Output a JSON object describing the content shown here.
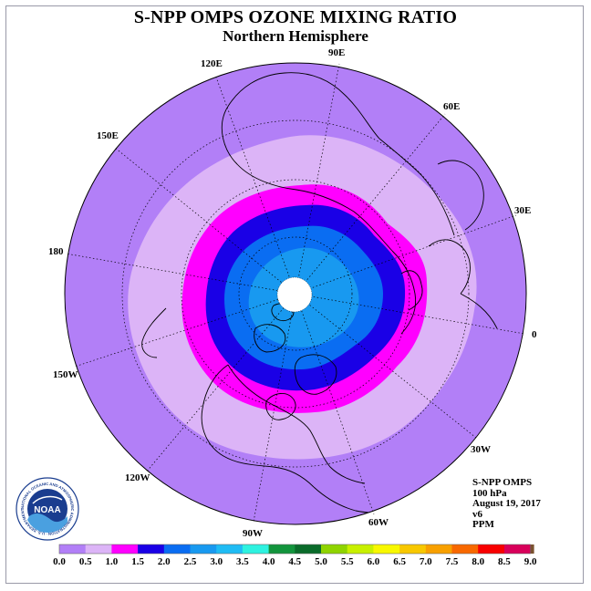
{
  "title": "S-NPP OMPS OZONE MIXING RATIO",
  "subtitle": "Northern Hemisphere",
  "longitude_labels": {
    "lon_90e": "90E",
    "lon_60e": "60E",
    "lon_30e": "30E",
    "lon_0": "0",
    "lon_30w": "30W",
    "lon_60w": "60W",
    "lon_90w": "90W",
    "lon_120w": "120W",
    "lon_150w": "150W",
    "lon_180": "180",
    "lon_150e": "150E",
    "lon_120e": "120E"
  },
  "info": {
    "instrument": "S-NPP OMPS",
    "level": "100 hPa",
    "date": "August 19, 2017",
    "version": "v6",
    "units": "PPM"
  },
  "logo": {
    "text": "NOAA",
    "ring_text": "NATIONAL OCEANIC AND ATMOSPHERIC ADMINISTRATION · U.S. DEPARTMENT OF COMMERCE"
  },
  "colorbar": {
    "ticks": [
      "0.0",
      "0.5",
      "1.0",
      "1.5",
      "2.0",
      "2.5",
      "3.0",
      "3.5",
      "4.0",
      "4.5",
      "5.0",
      "5.5",
      "6.0",
      "6.5",
      "7.0",
      "7.5",
      "8.0",
      "8.5",
      "9.0"
    ],
    "colors": [
      "#b27ff7",
      "#dcb4f7",
      "#ff00ff",
      "#1a00e6",
      "#0a6df2",
      "#1899f0",
      "#1fbcf4",
      "#2ef2e0",
      "#12943c",
      "#0a6b2a",
      "#8fd400",
      "#c8f000",
      "#f8f800",
      "#f8c800",
      "#f8a000",
      "#f86800",
      "#f80000",
      "#d8005a"
    ],
    "end_color": "#7a5230"
  },
  "map_colors": {
    "outer_band": "#b27ff7",
    "band_0_5": "#dcb4f7",
    "band_1_0": "#ff00ff",
    "band_1_5": "#1a00e6",
    "band_2_0": "#0a6df2",
    "band_2_5": "#1899f0",
    "pole_hole": "#ffffff"
  }
}
